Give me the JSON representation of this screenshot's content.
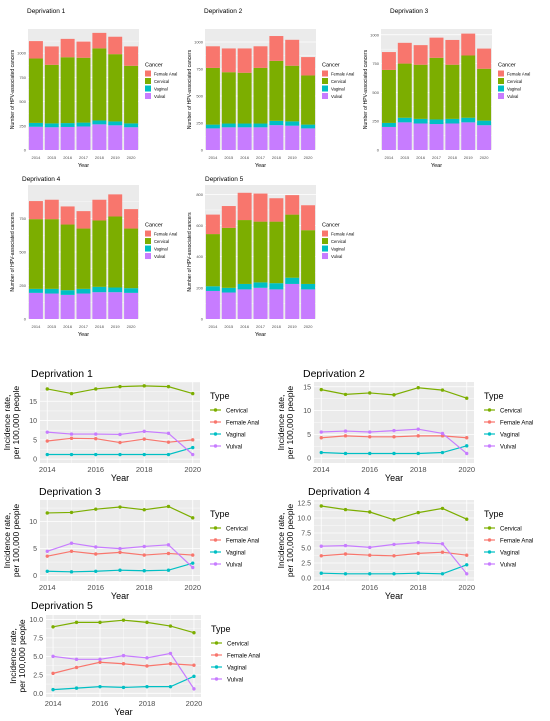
{
  "chart_data": {
    "top_panels": [
      {
        "type": "bar",
        "stacked": true,
        "title": "Deprivation 1",
        "xlabel": "Year",
        "ylabel": "Number of HPV-associated cancers",
        "categories": [
          "2014",
          "2015",
          "2016",
          "2017",
          "2018",
          "2019",
          "2020"
        ],
        "ylim": [
          0,
          1250
        ],
        "yticks": [
          "0",
          "250",
          "500",
          "750",
          "1000"
        ],
        "legend_title": "Cancer",
        "series": [
          {
            "name": "Vulval",
            "values": [
              240,
              235,
              238,
              243,
              265,
              255,
              235
            ]
          },
          {
            "name": "Vaginal",
            "values": [
              40,
              40,
              40,
              40,
              40,
              40,
              40
            ]
          },
          {
            "name": "Cervical",
            "values": [
              665,
              605,
              680,
              670,
              745,
              695,
              595
            ]
          },
          {
            "name": "Female Anal",
            "values": [
              180,
              190,
              190,
              167,
              160,
              180,
              200
            ]
          }
        ]
      },
      {
        "type": "bar",
        "stacked": true,
        "title": "Deprivation 2",
        "xlabel": "Year",
        "ylabel": "Number of HPV-associated cancers",
        "categories": [
          "2014",
          "2015",
          "2016",
          "2017",
          "2018",
          "2019",
          "2020"
        ],
        "ylim": [
          0,
          1120
        ],
        "yticks": [
          "0",
          "250",
          "500",
          "750",
          "1000"
        ],
        "legend_title": "Cancer",
        "series": [
          {
            "name": "Vulval",
            "values": [
              200,
              210,
              210,
              210,
              230,
              225,
              200
            ]
          },
          {
            "name": "Vaginal",
            "values": [
              35,
              35,
              35,
              35,
              40,
              40,
              35
            ]
          },
          {
            "name": "Cervical",
            "values": [
              525,
              475,
              470,
              515,
              555,
              515,
              455
            ]
          },
          {
            "name": "Female Anal",
            "values": [
              200,
              220,
              225,
              200,
              230,
              240,
              170
            ]
          }
        ]
      },
      {
        "type": "bar",
        "stacked": true,
        "title": "Deprivation 3",
        "xlabel": "Year",
        "ylabel": "Number of HPV-associated cancers",
        "categories": [
          "2014",
          "2015",
          "2016",
          "2017",
          "2018",
          "2019",
          "2020"
        ],
        "ylim": [
          0,
          1050
        ],
        "yticks": [
          "0",
          "250",
          "500",
          "750",
          "1000"
        ],
        "legend_title": "Cancer",
        "series": [
          {
            "name": "Vulval",
            "values": [
              200,
              240,
              230,
              225,
              230,
              240,
              215
            ]
          },
          {
            "name": "Vaginal",
            "values": [
              35,
              40,
              40,
              40,
              40,
              40,
              40
            ]
          },
          {
            "name": "Cervical",
            "values": [
              460,
              470,
              470,
              535,
              470,
              540,
              450
            ]
          },
          {
            "name": "Female Anal",
            "values": [
              155,
              180,
              170,
              175,
              215,
              190,
              175
            ]
          }
        ]
      },
      {
        "type": "bar",
        "stacked": true,
        "title": "Deprivation 4",
        "xlabel": "Year",
        "ylabel": "Number of HPV-associated cancers",
        "categories": [
          "2014",
          "2015",
          "2016",
          "2017",
          "2018",
          "2019",
          "2020"
        ],
        "ylim": [
          0,
          1000
        ],
        "yticks": [
          "0",
          "250",
          "500",
          "750"
        ],
        "legend_title": "Cancer",
        "series": [
          {
            "name": "Vulval",
            "values": [
              195,
              190,
              180,
              190,
              200,
              200,
              195
            ]
          },
          {
            "name": "Vaginal",
            "values": [
              30,
              35,
              35,
              35,
              40,
              35,
              35
            ]
          },
          {
            "name": "Cervical",
            "values": [
              520,
              520,
              490,
              450,
              495,
              530,
              445
            ]
          },
          {
            "name": "Female Anal",
            "values": [
              135,
              145,
              135,
              130,
              155,
              165,
              145
            ]
          }
        ]
      },
      {
        "type": "bar",
        "stacked": true,
        "title": "Deprivation 5",
        "xlabel": "Year",
        "ylabel": "Number of HPV-associated cancers",
        "categories": [
          "2014",
          "2015",
          "2016",
          "2017",
          "2018",
          "2019",
          "2020"
        ],
        "ylim": [
          0,
          860
        ],
        "yticks": [
          "0",
          "200",
          "400",
          "600",
          "800"
        ],
        "legend_title": "Cancer",
        "series": [
          {
            "name": "Vulval",
            "values": [
              180,
              170,
              190,
              200,
              190,
              225,
              190
            ]
          },
          {
            "name": "Vaginal",
            "values": [
              30,
              30,
              35,
              35,
              40,
              40,
              35
            ]
          },
          {
            "name": "Cervical",
            "values": [
              335,
              385,
              410,
              390,
              395,
              405,
              345
            ]
          },
          {
            "name": "Female Anal",
            "values": [
              125,
              140,
              175,
              180,
              150,
              125,
              160
            ]
          }
        ]
      }
    ],
    "bottom_panels": [
      {
        "type": "line",
        "title": "Deprivation 1",
        "xlabel": "Year",
        "ylabel": "Incidence rate, per 100,000 people",
        "x": [
          2014,
          2015,
          2016,
          2017,
          2018,
          2019,
          2020
        ],
        "xticks": [
          "2014",
          "2016",
          "2018",
          "2020"
        ],
        "ylim": [
          -1,
          20
        ],
        "yticks": [
          "0",
          "5",
          "10",
          "15"
        ],
        "legend_title": "Type",
        "series": [
          {
            "name": "Cervical",
            "values": [
              18.2,
              17.0,
              18.2,
              18.8,
              19.0,
              18.8,
              17.0
            ]
          },
          {
            "name": "Female Anal",
            "values": [
              4.7,
              5.4,
              5.3,
              4.3,
              5.2,
              4.4,
              5.0
            ]
          },
          {
            "name": "Vaginal",
            "values": [
              1.2,
              1.2,
              1.2,
              1.2,
              1.2,
              1.2,
              3.0
            ]
          },
          {
            "name": "Vulval",
            "values": [
              7.0,
              6.5,
              6.5,
              6.4,
              7.2,
              6.7,
              1.2
            ]
          }
        ]
      },
      {
        "type": "line",
        "title": "Deprivation 2",
        "xlabel": "Year",
        "ylabel": "Incidence rate, per 100,000 people",
        "x": [
          2014,
          2015,
          2016,
          2017,
          2018,
          2019,
          2020
        ],
        "xticks": [
          "2014",
          "2016",
          "2018",
          "2020"
        ],
        "ylim": [
          -1,
          16
        ],
        "yticks": [
          "0",
          "5",
          "10",
          "15"
        ],
        "legend_title": "Type",
        "series": [
          {
            "name": "Cervical",
            "values": [
              14.4,
              13.4,
              13.7,
              13.3,
              14.8,
              14.3,
              12.6
            ]
          },
          {
            "name": "Female Anal",
            "values": [
              4.3,
              4.7,
              4.5,
              4.5,
              4.7,
              4.7,
              4.3
            ]
          },
          {
            "name": "Vaginal",
            "values": [
              1.2,
              1.0,
              1.0,
              1.0,
              1.0,
              1.2,
              2.6
            ]
          },
          {
            "name": "Vulval",
            "values": [
              5.5,
              5.7,
              5.5,
              5.8,
              6.1,
              5.2,
              1.0
            ]
          }
        ]
      },
      {
        "type": "line",
        "title": "Deprivation 3",
        "xlabel": "Year",
        "ylabel": "Incidence rate, per 100,000 people",
        "x": [
          2014,
          2015,
          2016,
          2017,
          2018,
          2019,
          2020
        ],
        "xticks": [
          "2014",
          "2016",
          "2018",
          "2020"
        ],
        "ylim": [
          -1,
          14
        ],
        "yticks": [
          "0",
          "5",
          "10"
        ],
        "legend_title": "Type",
        "series": [
          {
            "name": "Cervical",
            "values": [
              11.6,
              11.7,
              12.3,
              12.7,
              12.2,
              12.8,
              10.7
            ]
          },
          {
            "name": "Female Anal",
            "values": [
              3.6,
              4.5,
              4.0,
              4.3,
              3.8,
              4.1,
              3.8
            ]
          },
          {
            "name": "Vaginal",
            "values": [
              0.8,
              0.7,
              0.8,
              1.0,
              0.9,
              1.0,
              2.3
            ]
          },
          {
            "name": "Vulval",
            "values": [
              4.5,
              6.0,
              5.3,
              5.0,
              5.4,
              5.7,
              1.5
            ]
          }
        ]
      },
      {
        "type": "line",
        "title": "Deprivation 4",
        "xlabel": "Year",
        "ylabel": "Incidence rate, per 100,000 people",
        "x": [
          2014,
          2015,
          2016,
          2017,
          2018,
          2019,
          2020
        ],
        "xticks": [
          "2014",
          "2016",
          "2018",
          "2020"
        ],
        "ylim": [
          -0.5,
          13
        ],
        "yticks": [
          "0.0",
          "2.5",
          "5.0",
          "7.5",
          "10.0",
          "12.5"
        ],
        "legend_title": "Type",
        "series": [
          {
            "name": "Cervical",
            "values": [
              12.0,
              11.4,
              11.0,
              9.7,
              10.9,
              11.6,
              9.8
            ]
          },
          {
            "name": "Female Anal",
            "values": [
              3.7,
              4.0,
              3.8,
              3.7,
              4.1,
              4.3,
              3.8
            ]
          },
          {
            "name": "Vaginal",
            "values": [
              0.8,
              0.7,
              0.7,
              0.7,
              0.8,
              0.7,
              2.2
            ]
          },
          {
            "name": "Vulval",
            "values": [
              5.3,
              5.4,
              5.1,
              5.6,
              5.9,
              5.7,
              0.7
            ]
          }
        ]
      },
      {
        "type": "line",
        "title": "Deprivation 5",
        "xlabel": "Year",
        "ylabel": "Incidence rate, per 100,000 people",
        "x": [
          2014,
          2015,
          2016,
          2017,
          2018,
          2019,
          2020
        ],
        "xticks": [
          "2014",
          "2016",
          "2018",
          "2020"
        ],
        "ylim": [
          -0.5,
          10.6
        ],
        "yticks": [
          "0.0",
          "2.5",
          "5.0",
          "7.5",
          "10.0"
        ],
        "legend_title": "Type",
        "series": [
          {
            "name": "Cervical",
            "values": [
              9.0,
              9.6,
              9.6,
              9.9,
              9.6,
              9.1,
              8.2
            ]
          },
          {
            "name": "Female Anal",
            "values": [
              2.7,
              3.5,
              4.2,
              4.0,
              3.7,
              4.0,
              3.8
            ]
          },
          {
            "name": "Vaginal",
            "values": [
              0.5,
              0.7,
              0.9,
              0.8,
              0.9,
              0.9,
              2.3
            ]
          },
          {
            "name": "Vulval",
            "values": [
              5.0,
              4.6,
              4.6,
              5.1,
              4.8,
              5.4,
              0.6
            ]
          }
        ]
      }
    ]
  },
  "colors": {
    "female_anal": "#F8766D",
    "cervical": "#7CAE00",
    "vaginal": "#00BFC4",
    "vulval": "#C77CFF",
    "panel_bg": "#EBEBEB",
    "grid": "#FFFFFF"
  }
}
